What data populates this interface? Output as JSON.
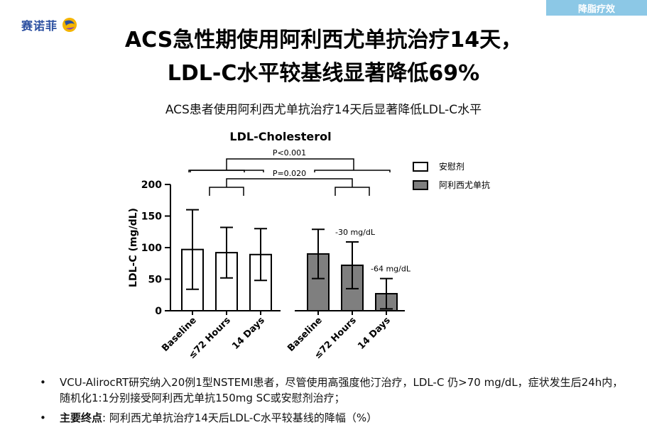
{
  "header": {
    "logo_text": "赛诺菲",
    "tag": "降脂疗效"
  },
  "title": {
    "line1": "ACS急性期使用阿利西尤单抗治疗14天，",
    "line2": "LDL-C水平较基线显著降低69%"
  },
  "subtitle": "ACS患者使用阿利西尤单抗治疗14天后显著降低LDL-C水平",
  "chart_data": {
    "type": "bar",
    "title": "LDL-Cholesterol",
    "ylabel": "LDL-C (mg/dL)",
    "ylim": [
      0,
      200
    ],
    "yticks": [
      0,
      50,
      100,
      150,
      200
    ],
    "categories": [
      "Baseline",
      "≤72 Hours",
      "14 Days"
    ],
    "series": [
      {
        "name": "安慰剂",
        "color": "#ffffff",
        "values": [
          97,
          92,
          89
        ],
        "error": [
          63,
          40,
          41
        ]
      },
      {
        "name": "阿利西尤单抗",
        "color": "#7f7f7f",
        "values": [
          90,
          72,
          27
        ],
        "error": [
          39,
          37,
          24
        ]
      }
    ],
    "annotations": {
      "p_top": "P<0.001",
      "p_mid": "P=0.020",
      "delta1": "-30 mg/dL",
      "delta2": "-64 mg/dL"
    },
    "legend_position": "top-right"
  },
  "bullets": [
    {
      "bold": "",
      "text": "VCU-AlirocRT研究纳入20例1型NSTEMI患者，尽管使用高强度他汀治疗，LDL-C 仍>70 mg/dL，症状发生后24h内，随机化1:1分别接受阿利西尤单抗150mg SC或安慰剂治疗；"
    },
    {
      "bold": "主要终点",
      "text": ": 阿利西尤单抗治疗14天后LDL-C水平较基线的降幅（%）"
    }
  ]
}
